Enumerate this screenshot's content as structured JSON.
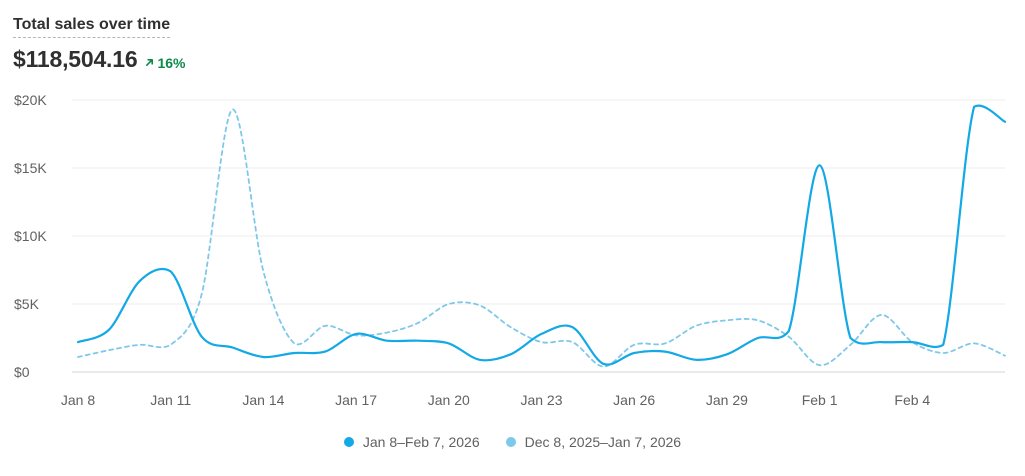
{
  "header": {
    "title": "Total sales over time",
    "total": "$118,504.16",
    "change": "16%",
    "change_icon": "arrow-up-right-icon",
    "change_color": "#0c8a4a"
  },
  "legend": [
    {
      "label": "Jan 8–Feb 7, 2026",
      "color": "#13a8e6",
      "style": "solid"
    },
    {
      "label": "Dec 8, 2025–Jan 7, 2026",
      "color": "#7ec8ea",
      "style": "dashed"
    }
  ],
  "chart_data": {
    "type": "line",
    "x": [
      "Jan 8",
      "Jan 9",
      "Jan 10",
      "Jan 11",
      "Jan 12",
      "Jan 13",
      "Jan 14",
      "Jan 15",
      "Jan 16",
      "Jan 17",
      "Jan 18",
      "Jan 19",
      "Jan 20",
      "Jan 21",
      "Jan 22",
      "Jan 23",
      "Jan 24",
      "Jan 25",
      "Jan 26",
      "Jan 27",
      "Jan 28",
      "Jan 29",
      "Jan 30",
      "Jan 31",
      "Feb 1",
      "Feb 2",
      "Feb 3",
      "Feb 4",
      "Feb 5",
      "Feb 6",
      "Feb 7"
    ],
    "x_ticks": [
      "Jan 8",
      "Jan 11",
      "Jan 14",
      "Jan 17",
      "Jan 20",
      "Jan 23",
      "Jan 26",
      "Jan 29",
      "Feb 1",
      "Feb 4"
    ],
    "y_ticks": [
      "$0",
      "$5K",
      "$10K",
      "$15K",
      "$20K"
    ],
    "ylim": [
      0,
      20000
    ],
    "grid": true,
    "legend_position": "bottom-center",
    "series": [
      {
        "name": "Jan 8–Feb 7, 2026",
        "color": "#13a8e6",
        "dashed": false,
        "values": [
          2200,
          3100,
          6700,
          7400,
          2600,
          1800,
          1100,
          1400,
          1500,
          2800,
          2300,
          2300,
          2100,
          900,
          1300,
          2800,
          3300,
          600,
          1400,
          1500,
          900,
          1300,
          2500,
          3000,
          15200,
          2500,
          2200,
          2200,
          2000,
          19500,
          18400
        ]
      },
      {
        "name": "Dec 8, 2025–Jan 7, 2026",
        "color": "#7ec8ea",
        "dashed": true,
        "values": [
          1100,
          1600,
          2000,
          2000,
          5700,
          19300,
          7400,
          2100,
          3400,
          2700,
          2900,
          3600,
          5000,
          4900,
          3300,
          2200,
          2200,
          400,
          2000,
          2100,
          3400,
          3800,
          3800,
          2600,
          500,
          2000,
          4200,
          2200,
          1400,
          2100,
          1200
        ]
      }
    ]
  }
}
